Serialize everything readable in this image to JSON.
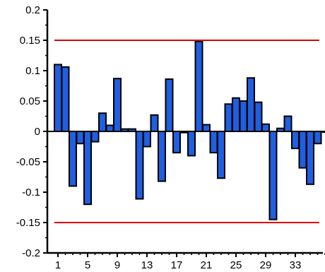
{
  "chart_data": {
    "type": "bar",
    "title": "",
    "xlabel": "",
    "ylabel": "",
    "ylim": [
      -0.2,
      0.2
    ],
    "yticks": [
      0.2,
      0.15,
      0.1,
      0.05,
      0,
      -0.05,
      -0.1,
      -0.15,
      -0.2
    ],
    "ytick_labels": [
      "0.2",
      "0.15",
      "0.1",
      "0.05",
      "0",
      "-0.05",
      "-0.1",
      "-0.15",
      "-0.2"
    ],
    "xticks": [
      1,
      5,
      9,
      13,
      17,
      21,
      25,
      29,
      33
    ],
    "xtick_labels": [
      "1",
      "5",
      "9",
      "13",
      "17",
      "21",
      "25",
      "29",
      "33"
    ],
    "x": [
      1,
      2,
      3,
      4,
      5,
      6,
      7,
      8,
      9,
      10,
      11,
      12,
      13,
      14,
      15,
      16,
      17,
      18,
      19,
      20,
      21,
      22,
      23,
      24,
      25,
      26,
      27,
      28,
      29,
      30,
      31,
      32,
      33,
      34,
      35,
      36,
      37
    ],
    "values": [
      0.11,
      0.106,
      -0.09,
      -0.02,
      -0.12,
      -0.017,
      0.03,
      0.01,
      0.087,
      0.004,
      0.004,
      -0.111,
      -0.025,
      0.027,
      -0.082,
      0.086,
      -0.035,
      -0.002,
      -0.04,
      0.148,
      0.011,
      -0.035,
      -0.077,
      0.045,
      0.055,
      0.05,
      0.088,
      0.048,
      0.012,
      -0.145,
      0.005,
      0.025,
      -0.028,
      -0.06,
      -0.087,
      -0.02,
      0.0
    ],
    "reference_lines": [
      0.15,
      -0.15
    ],
    "colors": {
      "bar": "#1f5fe0",
      "bar_edge": "#000000",
      "reference_line": "#e00000",
      "axis": "#000000"
    },
    "grid": false,
    "legend": "none"
  }
}
